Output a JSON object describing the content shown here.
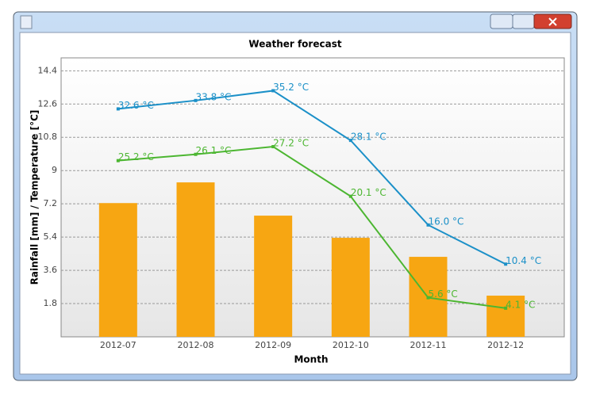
{
  "chart_data": {
    "type": "bar",
    "title": "Weather forecast",
    "x_label": "Month",
    "y_label": "Rainfall [mm] / Temperature [°C]",
    "categories": [
      "2012-07",
      "2012-08",
      "2012-09",
      "2012-10",
      "2012-11",
      "2012-12"
    ],
    "values": [
      7.24,
      8.36,
      6.56,
      5.36,
      4.33,
      2.23
    ],
    "color": "#f7a612",
    "ylim": [
      0,
      15.1
    ],
    "yticks": [
      1.8,
      3.6,
      5.4,
      7.2,
      9,
      10.8,
      12.6,
      14.4
    ],
    "grid": true,
    "y2lim": [
      0,
      39.9
    ],
    "series": [
      {
        "color": "#1b90c8",
        "axis": "y2",
        "values": [
          32.6,
          33.8,
          35.2,
          28.1,
          16.0,
          10.4
        ],
        "value_labels": [
          "32.6 °C",
          "33.8 °C",
          "35.2 °C",
          "28.1 °C",
          "16.0 °C",
          "10.4 °C"
        ]
      },
      {
        "color": "#4cb631",
        "axis": "y2",
        "values": [
          25.2,
          26.1,
          27.2,
          20.1,
          5.6,
          4.1
        ],
        "value_labels": [
          "25.2 °C",
          "26.1 °C",
          "27.2 °C",
          "20.1 °C",
          "5.6 °C",
          "4.1 °C"
        ]
      }
    ]
  }
}
